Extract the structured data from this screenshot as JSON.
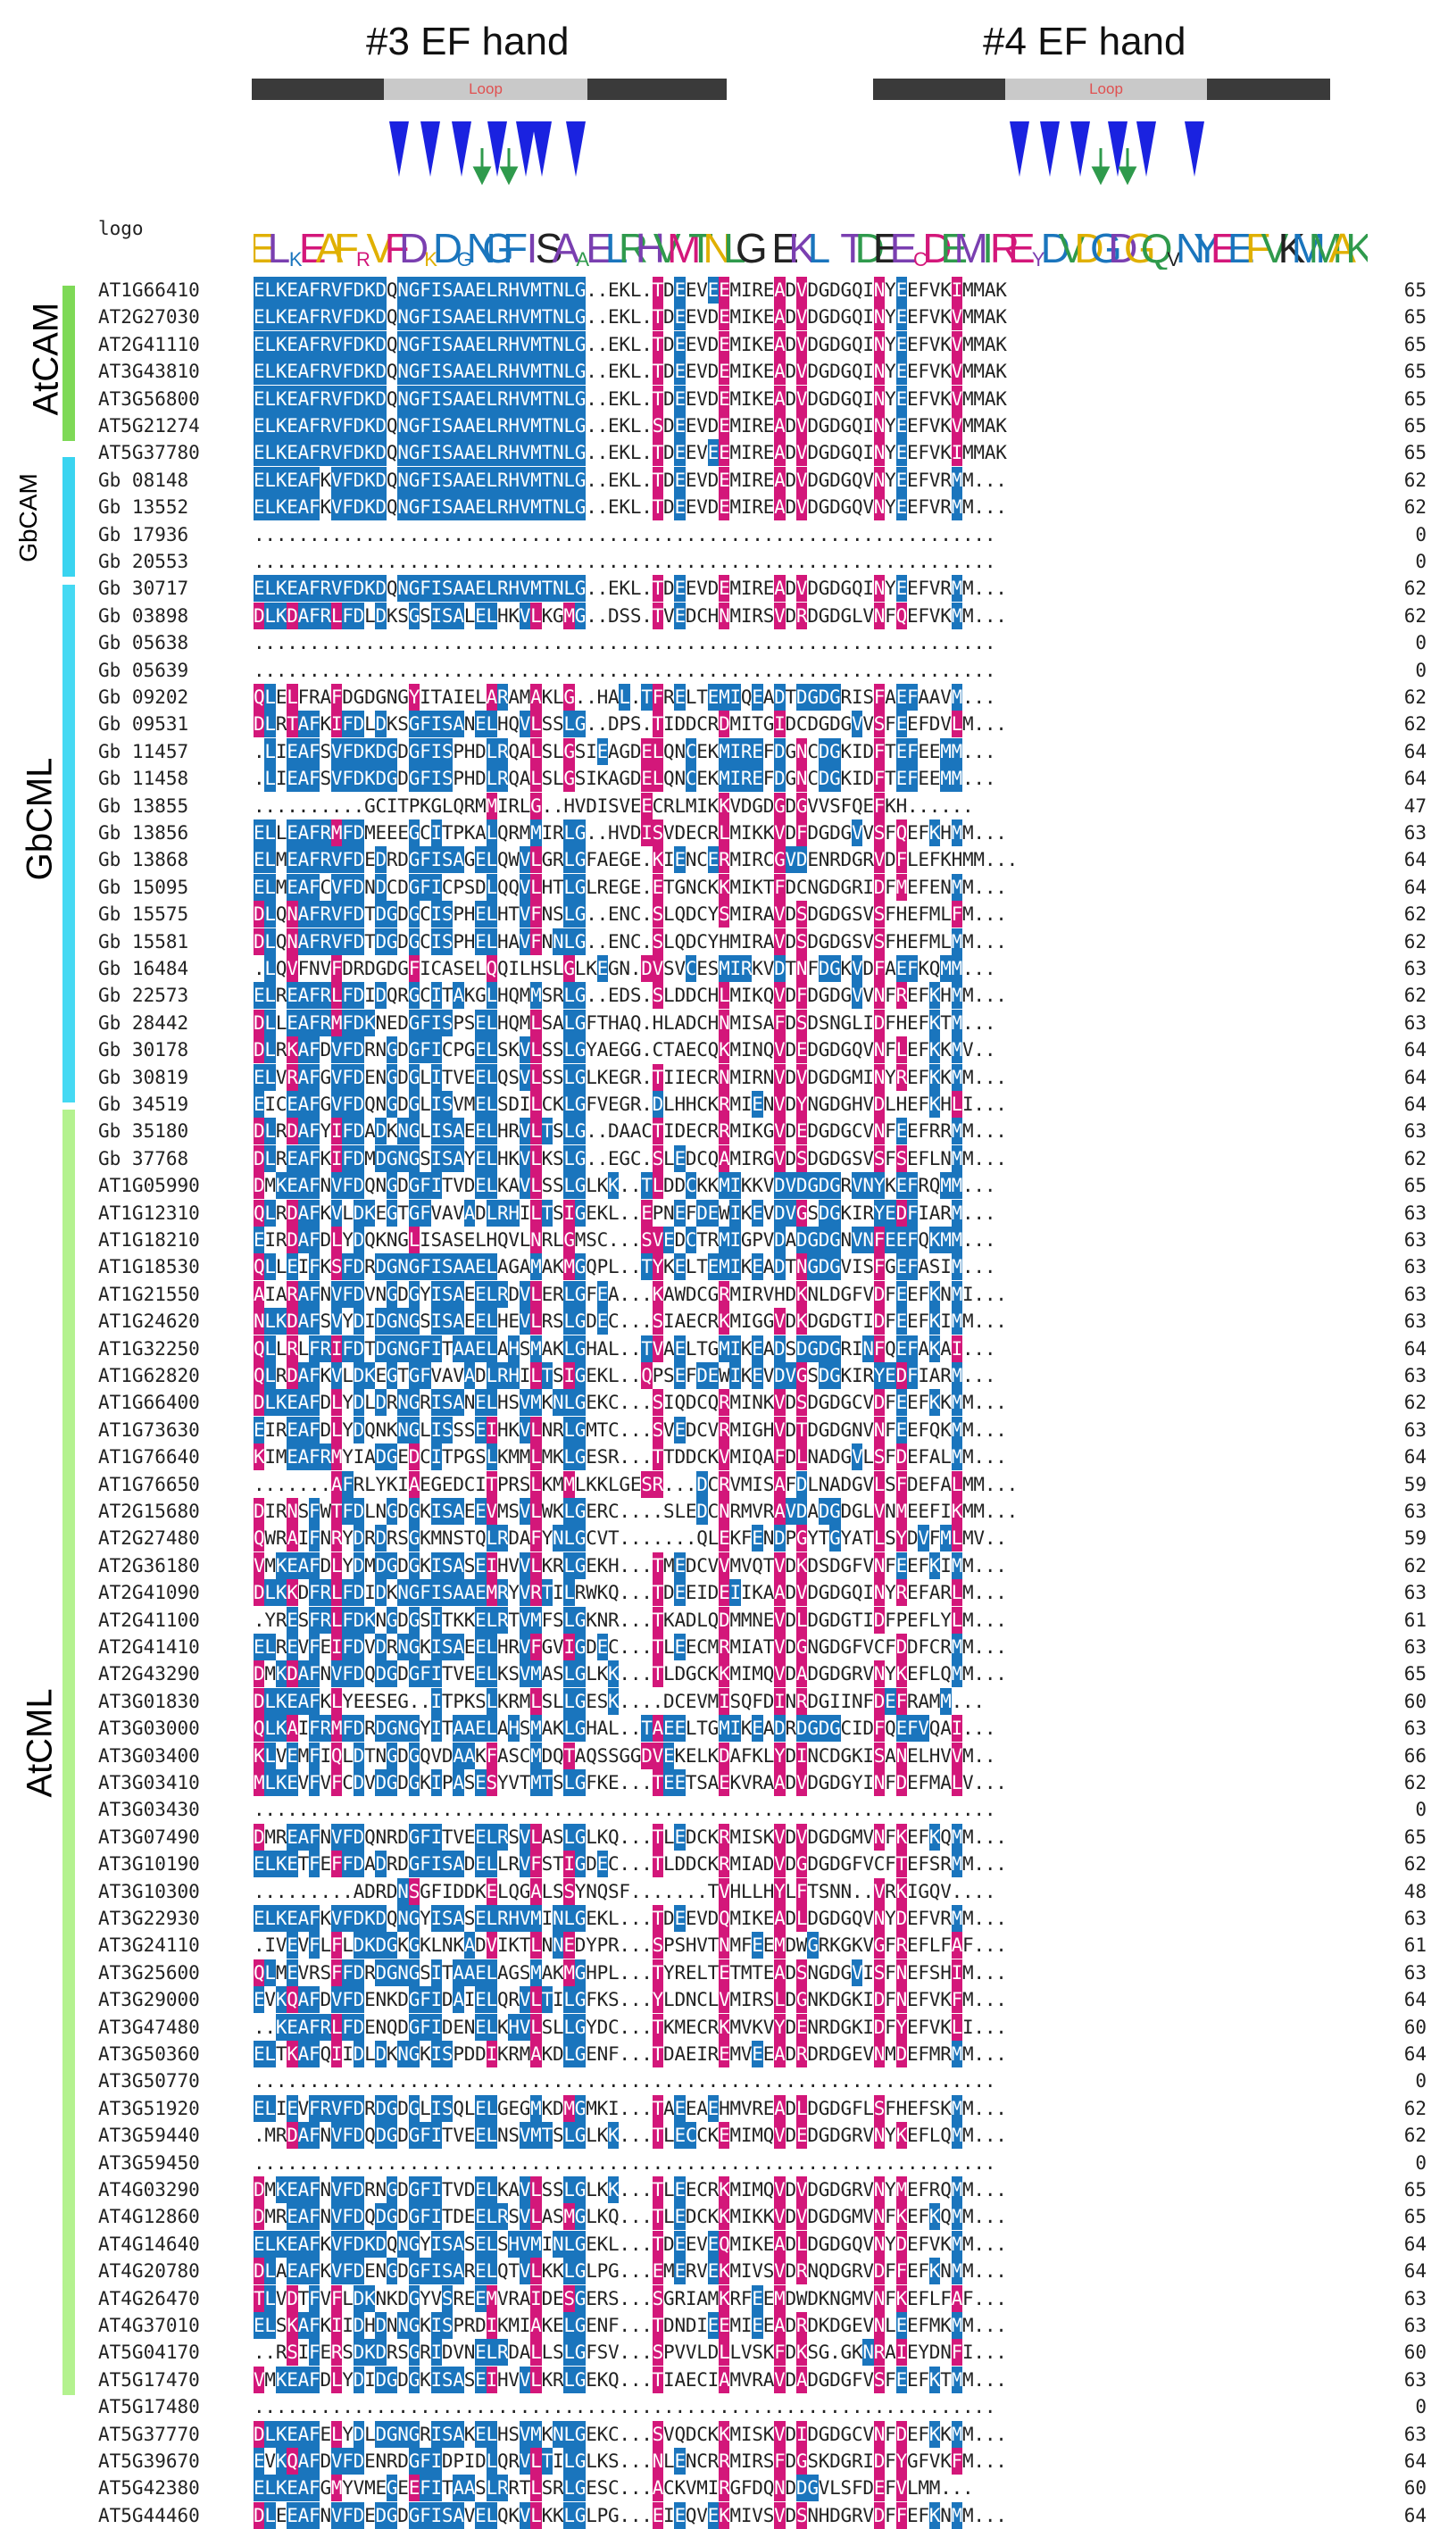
{
  "headers": {
    "ef3": "#3 EF hand",
    "ef4": "#4 EF hand",
    "loop": "Loop",
    "logo_label": "logo"
  },
  "colors": {
    "blue": "#1a75bd",
    "magenta": "#d3177a",
    "arrow_blue": "#1a22e0",
    "arrow_green": "#2f9a4c",
    "atcam_bar": "#7ed957",
    "gbcam_bar": "#3ad4f0",
    "gbcml_bar": "#45d9f3",
    "atcml_bar": "#b4f28f"
  },
  "logo_sequence": "ELkEAFrVFDkDgNGFISAaELRHVMTNLG.EKL.TDEEcDEMIREyDVDGDGQvNYEEFVKMMAK",
  "groups": [
    {
      "label": "AtCAM"
    },
    {
      "label": "GbCAM"
    },
    {
      "label": "GbCML"
    },
    {
      "label": "AtCML"
    }
  ],
  "rows": [
    {
      "id": "AT1G66410",
      "seq": "ELKEAFRVFDKDQNGFISAAELRHVMTNLG..EKL.TDEEVEEMIREADVDGDGQINYEEFVKIMMAK",
      "n": "65"
    },
    {
      "id": "AT2G27030",
      "seq": "ELKEAFRVFDKDQNGFISAAELRHVMTNLG..EKL.TDEEVDEMIKEADVDGDGQINYEEFVKVMMAK",
      "n": "65"
    },
    {
      "id": "AT2G41110",
      "seq": "ELKEAFRVFDKDQNGFISAAELRHVMTNLG..EKL.TDEEVDEMIKEADVDGDGQINYEEFVKVMMAK",
      "n": "65"
    },
    {
      "id": "AT3G43810",
      "seq": "ELKEAFRVFDKDQNGFISAAELRHVMTNLG..EKL.TDEEVDEMIKEADVDGDGQINYEEFVKVMMAK",
      "n": "65"
    },
    {
      "id": "AT3G56800",
      "seq": "ELKEAFRVFDKDQNGFISAAELRHVMTNLG..EKL.TDEEVDEMIKEADVDGDGQINYEEFVKVMMAK",
      "n": "65"
    },
    {
      "id": "AT5G21274",
      "seq": "ELKEAFRVFDKDQNGFISAAELRHVMTNLG..EKL.SDEEVDEMIREADVDGDGQINYEEFVKVMMAK",
      "n": "65"
    },
    {
      "id": "AT5G37780",
      "seq": "ELKEAFRVFDKDQNGFISAAELRHVMTNLG..EKL.TDEEVEEMIREADVDGDGQINYEEFVKIMMAK",
      "n": "65"
    },
    {
      "id": "Gb 08148",
      "seq": "ELKEAFKVFDKDQNGFISAAELRHVMTNLG..EKL.TDEEVDEMIREADVDGDGQVNYEEFVRMM...",
      "n": "62"
    },
    {
      "id": "Gb 13552",
      "seq": "ELKEAFKVFDKDQNGFISAAELRHVMTNLG..EKL.TDEEVDEMIREADVDGDGQVNYEEFVRMM...",
      "n": "62"
    },
    {
      "id": "Gb 17936",
      "seq": "...................................................................",
      "n": "0"
    },
    {
      "id": "Gb 20553",
      "seq": "...................................................................",
      "n": "0"
    },
    {
      "id": "Gb 30717",
      "seq": "ELKEAFRVFDKDQNGFISAAELRHVMTNLG..EKL.TDEEVDEMIREADVDGDGQINYEEFVRMM...",
      "n": "62"
    },
    {
      "id": "Gb 03898",
      "seq": "DLKDAFRLFDLDKSGSISALELHKVLKGMG..DSS.TVEDCHNMIRSVDRDGDGLVNFQEFVKMM...",
      "n": "62"
    },
    {
      "id": "Gb 05638",
      "seq": "...................................................................",
      "n": "0"
    },
    {
      "id": "Gb 05639",
      "seq": "...................................................................",
      "n": "0"
    },
    {
      "id": "Gb 09202",
      "seq": "QLELFRAFDGDGNGYITAIELARAMAKLG..HAL.TFRELTEMIQEADTDGDGRISFAEFAAVM...",
      "n": "62"
    },
    {
      "id": "Gb 09531",
      "seq": "DLRTAFKIFDLDKSGFISANELHQVLSSLG..DPS.TIDDCRDMITGIDCDGDGVVSFEEFDVLM...",
      "n": "62"
    },
    {
      "id": "Gb 11457",
      "seq": ".LIEAFSVFDKDGDGFISPHDLRQALSLGSIEAGDELQNCEKMIREFDGNCDGKIDFTEFEEMM...",
      "n": "64"
    },
    {
      "id": "Gb 11458",
      "seq": ".LIEAFSVFDKDGDGFISPHDLRQALSLGSIKAGDELQNCEKMIREFDGNCDGKIDFTEFEEMM...",
      "n": "64"
    },
    {
      "id": "Gb 13855",
      "seq": "..........GCITPKGLQRMMIRLG..HVDISVEECRLMIKKVDGDGDGVVSFQEFKH......",
      "n": "47"
    },
    {
      "id": "Gb 13856",
      "seq": "ELLEAFRMFDMEEEGCITPKALQRMMIRLG..HVDISVDECRLMIKKVDFDGDGVVSFQEFKHMM...",
      "n": "63"
    },
    {
      "id": "Gb 13868",
      "seq": "ELMEAFRVFDEDRDGFISAGELQWVLGRLGFAEGE.KIENCERMIRCGVDENRDGRVDFLEFKHMM...",
      "n": "64"
    },
    {
      "id": "Gb 15095",
      "seq": "ELMEAFCVFDNDCDGFICPSDLQQVLHTLGLREGE.ETGNCKKMIKTFDCNGDGRIDFMEFENMM...",
      "n": "64"
    },
    {
      "id": "Gb 15575",
      "seq": "DLQNAFRVFDTDGDGCISPHELHTVFNSLG..ENC.SLQDCYSMIRAVDSDGDGSVSFHEFMLFM...",
      "n": "62"
    },
    {
      "id": "Gb 15581",
      "seq": "DLQNAFRVFDTDGDGCISPHELHAVFNNLG..ENC.SLQDCYHMIRAVDSDGDGSVSFHEFMLMM...",
      "n": "62"
    },
    {
      "id": "Gb 16484",
      "seq": ".LQVFNVFDRDGDGFICASELQQILHSLGLKEGN.DVSVCESMIRKVDTNFDGKVDFAEFKQMM...",
      "n": "63"
    },
    {
      "id": "Gb 22573",
      "seq": "ELREAFRLFDIDQRGCITAKGLHQMMSRLG..EDS.SLDDCHLMIKQVDFDGDGVVNFREFKHMM...",
      "n": "62"
    },
    {
      "id": "Gb 28442",
      "seq": "DLLEAFRMFDKNEDGFISPSELHQMLSALGFTHAQ.HLADCHNMISAFDSDSNGLIDFHEFKTM...",
      "n": "63"
    },
    {
      "id": "Gb 30178",
      "seq": "DLRKAFDVFDRNGDGFICPGELSKVLSSLGYAEGG.CTAECQKMINQVDEDGDGQVNFLEFKKMV..",
      "n": "64"
    },
    {
      "id": "Gb 30819",
      "seq": "ELVRAFGVFDENGDGLITVEELQSVLSSLGLKEGR.TIIECRNMIRNVDVDGDGMINYREFKKMM...",
      "n": "64"
    },
    {
      "id": "Gb 34519",
      "seq": "EICEAFGVFDQNGDGLISVMELSDILCKLGFVEGR.DLHHCKRMIENVDYNGDGHVDLHEFKHLI...",
      "n": "64"
    },
    {
      "id": "Gb 35180",
      "seq": "DLRDAFYIFDADKNGLISAEELHRVLTSLG..DAACTIDECRRMIKGVDEDGDGCVNFEEFRRMM...",
      "n": "63"
    },
    {
      "id": "Gb 37768",
      "seq": "DLREAFKIFDMDGNGSISAYELHKVLKSLG..EGC.SLEDCQAMIRGVDSDGDGSVSFSEFLNMM...",
      "n": "62"
    },
    {
      "id": "AT1G05990",
      "seq": "DMKEAFNVFDQNGDGFITVDELKAVLSSLGLKK..TLDDCKKMIKKVDVDGDGRVNYKEFRQMM...",
      "n": "65"
    },
    {
      "id": "AT1G12310",
      "seq": "QLRDAFKVLDKEGTGFVAVADLRHILTSIGEKL..EPNEFDEWIKEVDVGSDGKIRYEDFIARM...",
      "n": "63"
    },
    {
      "id": "AT1G18210",
      "seq": "EIRDAFDLYDQKNGLISASELHQVLNRLGMSC...SVEDCTRMIGPVDADGDGNVNFEEFQKMM...",
      "n": "63"
    },
    {
      "id": "AT1G18530",
      "seq": "QLLEIFKSFDRDGNGFISAAELAGAMAKMGQPL..TYKELTEMIKEADTNGDGVISFGEFASIM...",
      "n": "63"
    },
    {
      "id": "AT1G21550",
      "seq": "AIARAFNVFDVNGDGYISAEELRDVLERLGFEA...KAWDCGRMIRVHDKNLDGFVDFEEFKNMI...",
      "n": "63"
    },
    {
      "id": "AT1G24620",
      "seq": "NLKDAFSVYDIDGNGSISAEELHEVLRSLGDEC...SIAECRKMIGGVDKDGDGTIDFEEFKIMM...",
      "n": "63"
    },
    {
      "id": "AT1G32250",
      "seq": "QLLRLFRIFDTDGNGFITAAELAHSMAKLGHAL..TVAELTGMIKEADSDGDGRINFQEFAKAI...",
      "n": "64"
    },
    {
      "id": "AT1G62820",
      "seq": "QLRDAFKVLDKEGTGFVAVADLRHILTSIGEKL..QPSEFDEWIKEVDVGSDGKIRYEDFIARM...",
      "n": "63"
    },
    {
      "id": "AT1G66400",
      "seq": "DLKEAFDLYDLDRNGRISANELHSVMKNLGEKC...SIQDCQRMINKVDSDGDGCVDFEEFKKMM...",
      "n": "62"
    },
    {
      "id": "AT1G73630",
      "seq": "EIREAFDLYDQNKNGLISSSEIHKVLNRLGMTC...SVEDCVRMIGHVDTDGDGNVNFEEFQKMM...",
      "n": "63"
    },
    {
      "id": "AT1G76640",
      "seq": "KIMEAFRMYIADGEDCITPGSLKMMLMKLGESR...TTDDCKVMIQAFDLNADGVLSFDEFALMM...",
      "n": "64"
    },
    {
      "id": "AT1G76650",
      "seq": ".......AFRLYKIAEGEDCITPRSLKMMLKKLGESR...DCRVMISAFDLNADGVLSFDEFALMM...",
      "n": "59"
    },
    {
      "id": "AT2G15680",
      "seq": "DIRNSFWTFDLNGDGKISAEEVMSVLWKLGERC....SLEDCNRMVRAVDADGDGLVNMEEFIKMM...",
      "n": "63"
    },
    {
      "id": "AT2G27480",
      "seq": "QWRAIFNRYDRDRSGKMNSTQLRDAFYNLGCVT.......QLEKFENDPGYTGYATLSYDVFMLMV..",
      "n": "59"
    },
    {
      "id": "AT2G36180",
      "seq": "VMKEAFDLYDMDGDGKISASEIHVVLKRLGEKH...TMEDCVVMVQTVDKDSDGFVNFEEFKIMM...",
      "n": "62"
    },
    {
      "id": "AT2G41090",
      "seq": "DLKKDFRLFDIDKNGFISAAEMRYVRTILRWKQ...TDEEIDEIIKAADVDGDGQINYREFARLM...",
      "n": "63"
    },
    {
      "id": "AT2G41100",
      "seq": ".YRESFRLFDKNGDGSITKKELRTVMFSLGKNR...TKADLQDMMNEVDLDGDGTIDFPEFLYLM...",
      "n": "61"
    },
    {
      "id": "AT2G41410",
      "seq": "ELREVFEIFDVDRNGKISAEELHRVFGVIGDEC...TLEECMRMIATVDGNGDGFVCFDDFCRMM...",
      "n": "63"
    },
    {
      "id": "AT2G43290",
      "seq": "DMKDAFNVFDQDGDGFITVEELKSVMASLGLKK...TLDGCKKMIMQVDADGDGRVNYKEFLQMM...",
      "n": "65"
    },
    {
      "id": "AT3G01830",
      "seq": "DLKEAFKLYEESEG..ITPKSLKRMLSLLGESK....DCEVMISQFDINRDGIINFDEFRAMM...",
      "n": "60"
    },
    {
      "id": "AT3G03000",
      "seq": "QLKAIFRMFDRDGNGYITAAELAHSMAKLGHAL..TAEELTGMIKEADRDGDGCIDFQEFVQAI...",
      "n": "63"
    },
    {
      "id": "AT3G03400",
      "seq": "KLVEMFIQLDTNGDGQVDAAKFASCMDQTAQSSGGDVEKELKDAFKLYDINCDGKISANELHVVM..",
      "n": "66"
    },
    {
      "id": "AT3G03410",
      "seq": "MLKEVFVFCDVDGDGKIPASESYVTMTSLGFKE...TEETSAEKVRAADVDGDGYINFDEFMALV...",
      "n": "62"
    },
    {
      "id": "AT3G03430",
      "seq": "...................................................................",
      "n": "0"
    },
    {
      "id": "AT3G07490",
      "seq": "DMREAFNVFDQNRDGFITVEELRSVLASLGLKQ...TLEDCKRMISKVDVDGDGMVNFKEFKQMM...",
      "n": "65"
    },
    {
      "id": "AT3G10190",
      "seq": "ELKETFEFFDADRDGFISADELLRVFSTIGDEC...TLDDCKRMIADVDGDGDGFVCFTEFSRMM...",
      "n": "62"
    },
    {
      "id": "AT3G10300",
      "seq": ".........ADRDNSGFIDDKELQGALSSYNQSF.......TVHLLHYLFTSNN..VRKIGQV....",
      "n": "48"
    },
    {
      "id": "AT3G22930",
      "seq": "ELKEAFKVFDKDQNGYISASELRHVMINLGEKL...TDEEVDQMIKEADLDGDGQVNYDEFVRMM...",
      "n": "63"
    },
    {
      "id": "AT3G24110",
      "seq": ".IVEVFLFLDKDGKGKLNKADVIKTLNNEDYPR...SPSHVTNMFEEMDWGRKGKVGFREFLFAF...",
      "n": "61"
    },
    {
      "id": "AT3G25600",
      "seq": "QLMEVRSFFDRDGNGSITAAELAGSMAKMGHPL...TYRELTETMTEADSNGDGVISFNEFSHIM...",
      "n": "63"
    },
    {
      "id": "AT3G29000",
      "seq": "EVKQAFDVFDENKDGFIDAIELQRVLTILGFKS...YLDNCLVMIRSLDGNKDGKIDFNEFVKFM...",
      "n": "64"
    },
    {
      "id": "AT3G47480",
      "seq": "..KEAFRLFDENQDGFIDENELKHVLSLLGYDC...TKMECRKMVKVYDENRDGKIDFYEFVKLI...",
      "n": "60"
    },
    {
      "id": "AT3G50360",
      "seq": "ELTKAFQIIDLDKNGKISPDDIKRMAKDLGENF...TDAEIREMVEEADRDRDGEVNMDEFMRMM...",
      "n": "64"
    },
    {
      "id": "AT3G50770",
      "seq": "...................................................................",
      "n": "0"
    },
    {
      "id": "AT3G51920",
      "seq": "ELIEVFRVFDRDGDGLISQLELGEGMKDMGMKI...TAEEAEHMVREADLDGDGFLSFHEFSKMM...",
      "n": "62"
    },
    {
      "id": "AT3G59440",
      "seq": ".MRDAFNVFDQDGDGFITVEELNSVMTSLGLKK...TLECCKEMIMQVDEDGDGRVNYKEFLQMM...",
      "n": "62"
    },
    {
      "id": "AT3G59450",
      "seq": "...................................................................",
      "n": "0"
    },
    {
      "id": "AT4G03290",
      "seq": "DMKEAFNVFDRNGDGFITVDELKAVLSSLGLKK...TLEECRKMIMQVDVDGDGRVNYMEFRQMM...",
      "n": "65"
    },
    {
      "id": "AT4G12860",
      "seq": "DMREAFNVFDQDGDGFITDEELRSVLASMGLKQ...TLEDCKKMIKKVDVDGDGMVNFKEFKQMM...",
      "n": "65"
    },
    {
      "id": "AT4G14640",
      "seq": "ELKEAFKVFDKDQNGYISASELSHVMINLGEKL...TDEEVEQMIKEADLDGDGQVNYDEFVKMM...",
      "n": "64"
    },
    {
      "id": "AT4G20780",
      "seq": "DLAEAFKVFDENGDGFISARELQTVLKKLGLPG...EMERVEKMIVSVDRNQDGRVDFFEFKNMM...",
      "n": "64"
    },
    {
      "id": "AT4G26470",
      "seq": "TLVDTFVFLDKNKDGYVSREEMVRAIDESGERS...SGRIAMKRFEEMDWDKNGMVNFKEFLFAF...",
      "n": "63"
    },
    {
      "id": "AT4G37010",
      "seq": "ELSKAFKIIDHDNNGKISPRDIKMIAKELGENF...TDNDIEEMIEEADRDKDGEVNLEEFMKMM...",
      "n": "63"
    },
    {
      "id": "AT5G04170",
      "seq": "..RSIFERSDKDRSGRIDVNELRDALLSLGFSV...SPVVLDLLVSKFDKSG.GKNRAIEYDNFI...",
      "n": "60"
    },
    {
      "id": "AT5G17470",
      "seq": "VMKEAFDLYDIDGDGKISASEIHVVLKRLGEKQ...TIAECIAMVRAVDADGDGFVSFEEFKTMM...",
      "n": "63"
    },
    {
      "id": "AT5G17480",
      "seq": "...................................................................",
      "n": "0"
    },
    {
      "id": "AT5G37770",
      "seq": "DLKEAFELYDLDGNGRISAKELHSVMKNLGEKC...SVQDCKKMISKVDIDGDGCVNFDEFKKMM...",
      "n": "63"
    },
    {
      "id": "AT5G39670",
      "seq": "EVKQAFDVFDENRDGFIDPIDLQRVLTILGLKS...NLENCRRMIRSFDGSKDGRIDFYGFVKFM...",
      "n": "64"
    },
    {
      "id": "AT5G42380",
      "seq": "ELKEAFGMYVMEGEEFITAASLRRTLSRLGESC...ACKVMIRGFDQNDDGVLSFDEFVLMM...",
      "n": "60"
    },
    {
      "id": "AT5G44460",
      "seq": "DLEEAFNVFDEDGDGFISAVELQKVLKKLGLPG...EIEQVEKMIVSVDSNHDGRVDFFEFKNMM...",
      "n": "64"
    }
  ]
}
